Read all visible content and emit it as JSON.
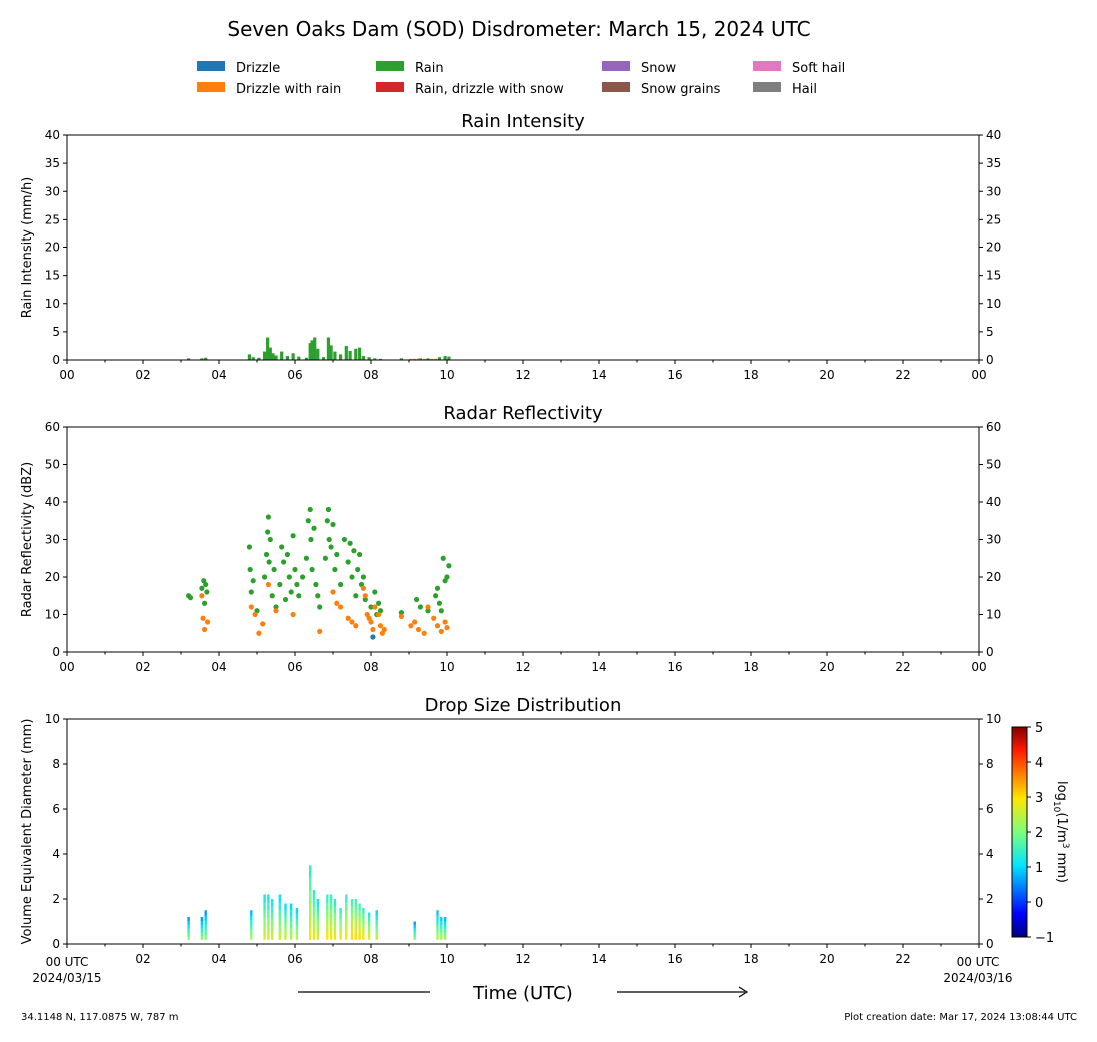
{
  "figure": {
    "title": "Seven Oaks Dam (SOD) Disdrometer: March 15, 2024 UTC",
    "location": "34.1148 N, 117.0875 W, 787 m",
    "creation": "Plot creation date: Mar 17, 2024 13:08:44 UTC",
    "xlabel": "Time (UTC)",
    "start_label": [
      "00 UTC",
      "2024/03/15"
    ],
    "end_label": [
      "00 UTC",
      "2024/03/16"
    ]
  },
  "legend": [
    {
      "name": "Drizzle",
      "color": "#1f77b4"
    },
    {
      "name": "Drizzle with rain",
      "color": "#ff7f0e"
    },
    {
      "name": "Rain",
      "color": "#2ca02c"
    },
    {
      "name": "Rain, drizzle with snow",
      "color": "#d62728"
    },
    {
      "name": "Snow",
      "color": "#9467bd"
    },
    {
      "name": "Snow grains",
      "color": "#8c564b"
    },
    {
      "name": "Soft hail",
      "color": "#e377c2"
    },
    {
      "name": "Hail",
      "color": "#7f7f7f"
    }
  ],
  "colorbar": {
    "label_parts": [
      "log",
      "10",
      "(1/m",
      "3",
      " mm)"
    ],
    "ticks": [
      "5",
      "4",
      "3",
      "2",
      "1",
      "0",
      "−1"
    ]
  },
  "x_ticks": [
    "00",
    "02",
    "04",
    "06",
    "08",
    "10",
    "12",
    "14",
    "16",
    "18",
    "20",
    "22",
    "00"
  ],
  "chart_data": [
    {
      "type": "bar",
      "title": "Rain Intensity",
      "ylabel": "Rain Intensity (mm/h)",
      "xlim": [
        0,
        24
      ],
      "ylim": [
        0,
        40
      ],
      "yticks": [
        0,
        5,
        10,
        15,
        20,
        25,
        30,
        35,
        40
      ],
      "series": [
        {
          "name": "Rain",
          "color": "#2ca02c",
          "x": [
            3.2,
            3.55,
            3.65,
            4.8,
            4.9,
            5.05,
            5.2,
            5.28,
            5.35,
            5.42,
            5.5,
            5.65,
            5.8,
            5.95,
            6.1,
            6.3,
            6.4,
            6.45,
            6.52,
            6.6,
            6.75,
            6.88,
            6.95,
            7.05,
            7.2,
            7.35,
            7.45,
            7.6,
            7.7,
            7.8,
            7.95,
            8.1,
            8.25,
            8.8,
            9.3,
            9.5,
            9.8,
            9.95,
            10.05
          ],
          "values": [
            0.3,
            0.3,
            0.4,
            1.0,
            0.5,
            0.4,
            1.5,
            4.0,
            2.2,
            1.2,
            0.8,
            1.5,
            0.7,
            1.2,
            0.6,
            0.4,
            3.0,
            3.5,
            4.0,
            2.0,
            0.5,
            4.0,
            2.6,
            1.5,
            1.0,
            2.5,
            1.6,
            2.0,
            2.2,
            0.7,
            0.5,
            0.3,
            0.2,
            0.3,
            0.3,
            0.3,
            0.5,
            0.7,
            0.6
          ]
        },
        {
          "name": "Drizzle with rain",
          "color": "#ff7f0e",
          "x": [
            9.05,
            9.15,
            9.25,
            9.4,
            9.6,
            9.7
          ],
          "values": [
            0.2,
            0.2,
            0.25,
            0.2,
            0.2,
            0.2
          ]
        }
      ]
    },
    {
      "type": "scatter",
      "title": "Radar Reflectivity",
      "ylabel": "Radar Reflectivity (dBZ)",
      "xlim": [
        0,
        24
      ],
      "ylim": [
        0,
        60
      ],
      "yticks": [
        0,
        10,
        20,
        30,
        40,
        50,
        60
      ],
      "series": [
        {
          "name": "Rain",
          "color": "#2ca02c",
          "x": [
            3.2,
            3.25,
            3.55,
            3.6,
            3.62,
            3.65,
            3.68,
            4.8,
            4.82,
            4.85,
            4.9,
            5.0,
            5.2,
            5.25,
            5.28,
            5.3,
            5.32,
            5.35,
            5.4,
            5.45,
            5.5,
            5.6,
            5.65,
            5.7,
            5.75,
            5.8,
            5.85,
            5.9,
            5.95,
            6.0,
            6.05,
            6.1,
            6.2,
            6.3,
            6.35,
            6.4,
            6.42,
            6.45,
            6.5,
            6.55,
            6.6,
            6.65,
            6.8,
            6.85,
            6.88,
            6.9,
            6.95,
            7.0,
            7.05,
            7.1,
            7.2,
            7.3,
            7.4,
            7.45,
            7.5,
            7.55,
            7.6,
            7.65,
            7.7,
            7.75,
            7.8,
            7.85,
            8.0,
            8.1,
            8.15,
            8.2,
            8.25,
            8.8,
            9.2,
            9.3,
            9.5,
            9.7,
            9.75,
            9.8,
            9.85,
            9.9,
            9.95,
            10.0,
            10.05
          ],
          "y": [
            15,
            14.5,
            17,
            19,
            13,
            18,
            16,
            28,
            22,
            16,
            19,
            11,
            20,
            26,
            32,
            36,
            24,
            30,
            15,
            22,
            12,
            18,
            28,
            24,
            14,
            26,
            20,
            16,
            31,
            22,
            18,
            15,
            20,
            25,
            35,
            38,
            30,
            22,
            33,
            18,
            15,
            12,
            25,
            35,
            38,
            30,
            28,
            34,
            22,
            26,
            18,
            30,
            24,
            29,
            20,
            27,
            15,
            22,
            26,
            18,
            20,
            14,
            12,
            16,
            10,
            13,
            11,
            10.5,
            14,
            12,
            11,
            15,
            17,
            13,
            11,
            25,
            19,
            20,
            23
          ]
        },
        {
          "name": "Drizzle with rain",
          "color": "#ff7f0e",
          "x": [
            3.55,
            3.58,
            3.62,
            3.7,
            4.85,
            4.95,
            5.05,
            5.15,
            5.3,
            5.5,
            5.95,
            6.65,
            7.0,
            7.1,
            7.2,
            7.4,
            7.5,
            7.6,
            7.8,
            7.85,
            7.9,
            7.95,
            8.0,
            8.05,
            8.1,
            8.2,
            8.25,
            8.3,
            8.35,
            8.8,
            9.05,
            9.15,
            9.25,
            9.4,
            9.5,
            9.65,
            9.75,
            9.85,
            9.95,
            10.0
          ],
          "y": [
            15,
            9,
            6,
            8,
            12,
            10,
            5,
            7.5,
            18,
            11,
            10,
            5.5,
            16,
            13,
            12,
            9,
            8,
            7,
            17,
            15,
            10,
            9,
            8,
            6,
            12,
            10,
            7,
            5,
            6,
            9.5,
            7,
            8,
            6,
            5,
            12,
            9,
            7,
            5.5,
            8,
            6.5
          ]
        },
        {
          "name": "Drizzle",
          "color": "#1f77b4",
          "x": [
            8.05
          ],
          "y": [
            4
          ]
        }
      ]
    },
    {
      "type": "heatmap",
      "title": "Drop Size Distribution",
      "ylabel": "Volume Equivalent Diameter (mm)",
      "xlim": [
        0,
        24
      ],
      "ylim": [
        0,
        10
      ],
      "yticks": [
        0,
        2,
        4,
        6,
        8,
        10
      ],
      "clim": [
        -1,
        5
      ],
      "columns": [
        {
          "x": 3.2,
          "top": 1.2,
          "level": 2.0
        },
        {
          "x": 3.55,
          "top": 1.2,
          "level": 2.0
        },
        {
          "x": 3.65,
          "top": 1.5,
          "level": 2.0
        },
        {
          "x": 4.85,
          "top": 1.5,
          "level": 2.2
        },
        {
          "x": 5.2,
          "top": 2.2,
          "level": 2.6
        },
        {
          "x": 5.3,
          "top": 2.2,
          "level": 2.6
        },
        {
          "x": 5.4,
          "top": 2.0,
          "level": 2.6
        },
        {
          "x": 5.6,
          "top": 2.2,
          "level": 2.5
        },
        {
          "x": 5.75,
          "top": 1.8,
          "level": 2.5
        },
        {
          "x": 5.9,
          "top": 1.8,
          "level": 2.4
        },
        {
          "x": 6.05,
          "top": 1.6,
          "level": 2.4
        },
        {
          "x": 6.4,
          "top": 3.5,
          "level": 2.8
        },
        {
          "x": 6.5,
          "top": 2.4,
          "level": 2.8
        },
        {
          "x": 6.6,
          "top": 2.0,
          "level": 2.6
        },
        {
          "x": 6.85,
          "top": 2.2,
          "level": 2.9
        },
        {
          "x": 6.95,
          "top": 2.2,
          "level": 2.9
        },
        {
          "x": 7.05,
          "top": 2.0,
          "level": 2.8
        },
        {
          "x": 7.2,
          "top": 1.6,
          "level": 2.8
        },
        {
          "x": 7.35,
          "top": 2.2,
          "level": 2.9
        },
        {
          "x": 7.5,
          "top": 2.0,
          "level": 3.0
        },
        {
          "x": 7.6,
          "top": 2.0,
          "level": 3.0
        },
        {
          "x": 7.7,
          "top": 1.8,
          "level": 3.0
        },
        {
          "x": 7.8,
          "top": 1.6,
          "level": 2.9
        },
        {
          "x": 7.95,
          "top": 1.4,
          "level": 2.7
        },
        {
          "x": 8.15,
          "top": 1.5,
          "level": 2.4
        },
        {
          "x": 9.15,
          "top": 1.0,
          "level": 2.0
        },
        {
          "x": 9.75,
          "top": 1.5,
          "level": 2.3
        },
        {
          "x": 9.85,
          "top": 1.2,
          "level": 2.3
        },
        {
          "x": 9.95,
          "top": 1.2,
          "level": 2.2
        }
      ]
    }
  ]
}
